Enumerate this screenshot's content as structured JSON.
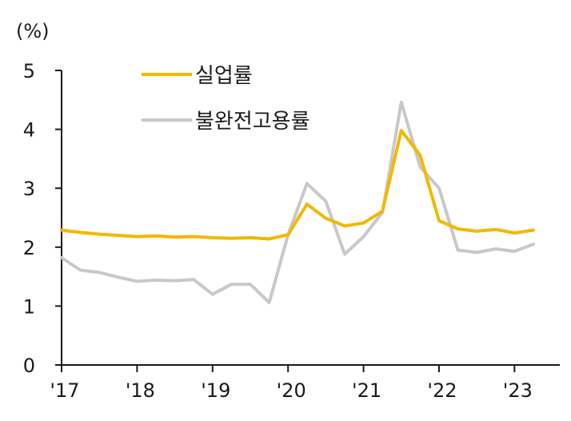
{
  "chart_data": {
    "type": "line",
    "unit_label": "(%)",
    "ylim": [
      0,
      5
    ],
    "yticks": [
      0,
      1,
      2,
      3,
      4,
      5
    ],
    "xlim": [
      2017.0,
      2023.6
    ],
    "xticks": [
      {
        "value": 2017,
        "label": "'17"
      },
      {
        "value": 2018,
        "label": "'18"
      },
      {
        "value": 2019,
        "label": "'19"
      },
      {
        "value": 2020,
        "label": "'20"
      },
      {
        "value": 2021,
        "label": "'21"
      },
      {
        "value": 2022,
        "label": "'22"
      },
      {
        "value": 2023,
        "label": "'23"
      }
    ],
    "grid": false,
    "legend_position": "top-left",
    "x": [
      2017.0,
      2017.25,
      2017.5,
      2017.75,
      2018.0,
      2018.25,
      2018.5,
      2018.75,
      2019.0,
      2019.25,
      2019.5,
      2019.75,
      2020.0,
      2020.25,
      2020.5,
      2020.75,
      2021.0,
      2021.25,
      2021.5,
      2021.75,
      2022.0,
      2022.25,
      2022.5,
      2022.75,
      2023.0,
      2023.25
    ],
    "series": [
      {
        "name": "실업률",
        "color": "#f2b800",
        "values": [
          2.29,
          2.25,
          2.22,
          2.2,
          2.18,
          2.19,
          2.17,
          2.18,
          2.16,
          2.15,
          2.16,
          2.14,
          2.21,
          2.73,
          2.49,
          2.36,
          2.41,
          2.61,
          3.98,
          3.56,
          2.45,
          2.31,
          2.27,
          2.3,
          2.24,
          2.29
        ]
      },
      {
        "name": "불완전고용률",
        "color": "#c8c8c8",
        "values": [
          1.82,
          1.61,
          1.57,
          1.49,
          1.42,
          1.44,
          1.43,
          1.45,
          1.2,
          1.37,
          1.37,
          1.06,
          2.21,
          3.08,
          2.78,
          1.88,
          2.18,
          2.59,
          4.46,
          3.36,
          3.0,
          1.95,
          1.91,
          1.97,
          1.93,
          2.05
        ]
      }
    ]
  }
}
